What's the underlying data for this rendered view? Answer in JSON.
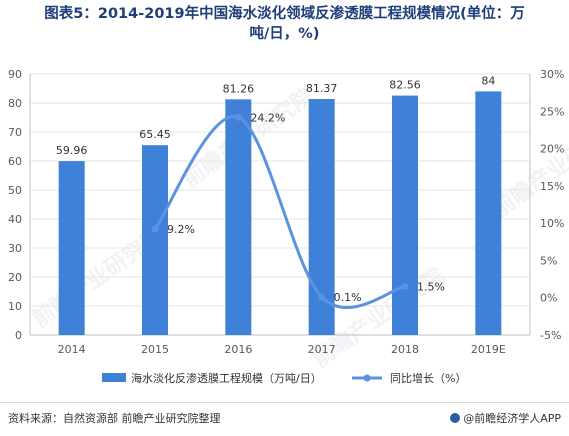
{
  "title": {
    "line1": "图表5：2014-2019年中国海水淡化领域反渗透膜工程规模情况(单位：万",
    "line2": "吨/日，%)"
  },
  "source": "资料来源：自然资源部 前瞻产业研究院整理",
  "brand": "@前瞻经济学人APP",
  "watermark": "前瞻产业研究院",
  "colors": {
    "bar": "#3f81d8",
    "line": "#5b93e1",
    "axis": "#bfbfbf",
    "grid": "#e6e6e6",
    "text": "#595959"
  },
  "chart_data": {
    "type": "bar+line",
    "categories": [
      "2014",
      "2015",
      "2016",
      "2017",
      "2018",
      "2019E"
    ],
    "series": [
      {
        "name": "海水淡化反渗透膜工程规模（万吨/日）",
        "type": "bar",
        "axis": "left",
        "values": [
          59.96,
          65.45,
          81.26,
          81.37,
          82.56,
          84
        ],
        "labels": [
          "59.96",
          "65.45",
          "81.26",
          "81.37",
          "82.56",
          "84"
        ]
      },
      {
        "name": "同比增长（%）",
        "type": "line",
        "axis": "right",
        "values": [
          null,
          9.2,
          24.2,
          0.1,
          1.5,
          null
        ],
        "labels": [
          "",
          "9.2%",
          "24.2%",
          "0.1%",
          "1.5%",
          ""
        ]
      }
    ],
    "y_left": {
      "min": 0,
      "max": 90,
      "step": 10,
      "ticks": [
        "0",
        "10",
        "20",
        "30",
        "40",
        "50",
        "60",
        "70",
        "80",
        "90"
      ]
    },
    "y_right": {
      "min": -5,
      "max": 30,
      "step": 5,
      "ticks": [
        "-5%",
        "0%",
        "5%",
        "10%",
        "15%",
        "20%",
        "25%",
        "30%"
      ]
    },
    "legend_position": "bottom"
  }
}
